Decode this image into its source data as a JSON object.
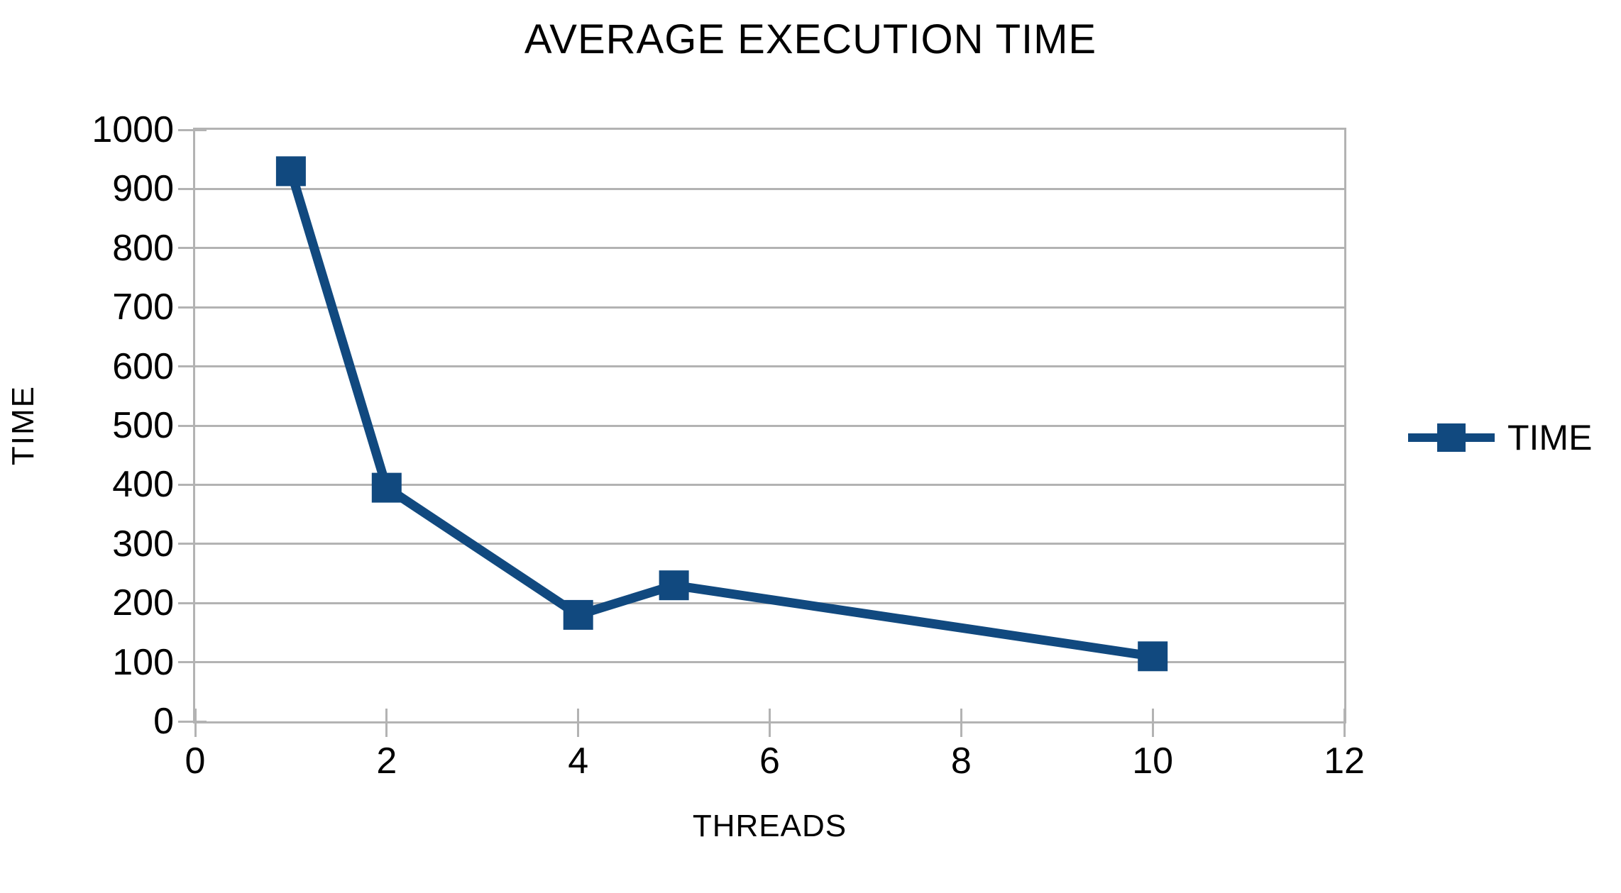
{
  "chart_data": {
    "type": "line",
    "title": "AVERAGE EXECUTION TIME",
    "xlabel": "THREADS",
    "ylabel": "TIME",
    "series": [
      {
        "name": "TIME",
        "x": [
          1,
          2,
          4,
          5,
          10
        ],
        "y": [
          930,
          395,
          180,
          230,
          110
        ]
      }
    ],
    "xlim": [
      0,
      12
    ],
    "ylim": [
      0,
      1000
    ],
    "xticks": [
      0,
      2,
      4,
      6,
      8,
      10,
      12
    ],
    "yticks": [
      0,
      100,
      200,
      300,
      400,
      500,
      600,
      700,
      800,
      900,
      1000
    ],
    "grid": "horizontal-major-only",
    "marker": "square",
    "legend": {
      "position": "right",
      "entries": [
        "TIME"
      ]
    },
    "colors": {
      "series": "#11497f",
      "grid": "#b3b3b3",
      "text": "#000000",
      "background": "#ffffff"
    }
  }
}
